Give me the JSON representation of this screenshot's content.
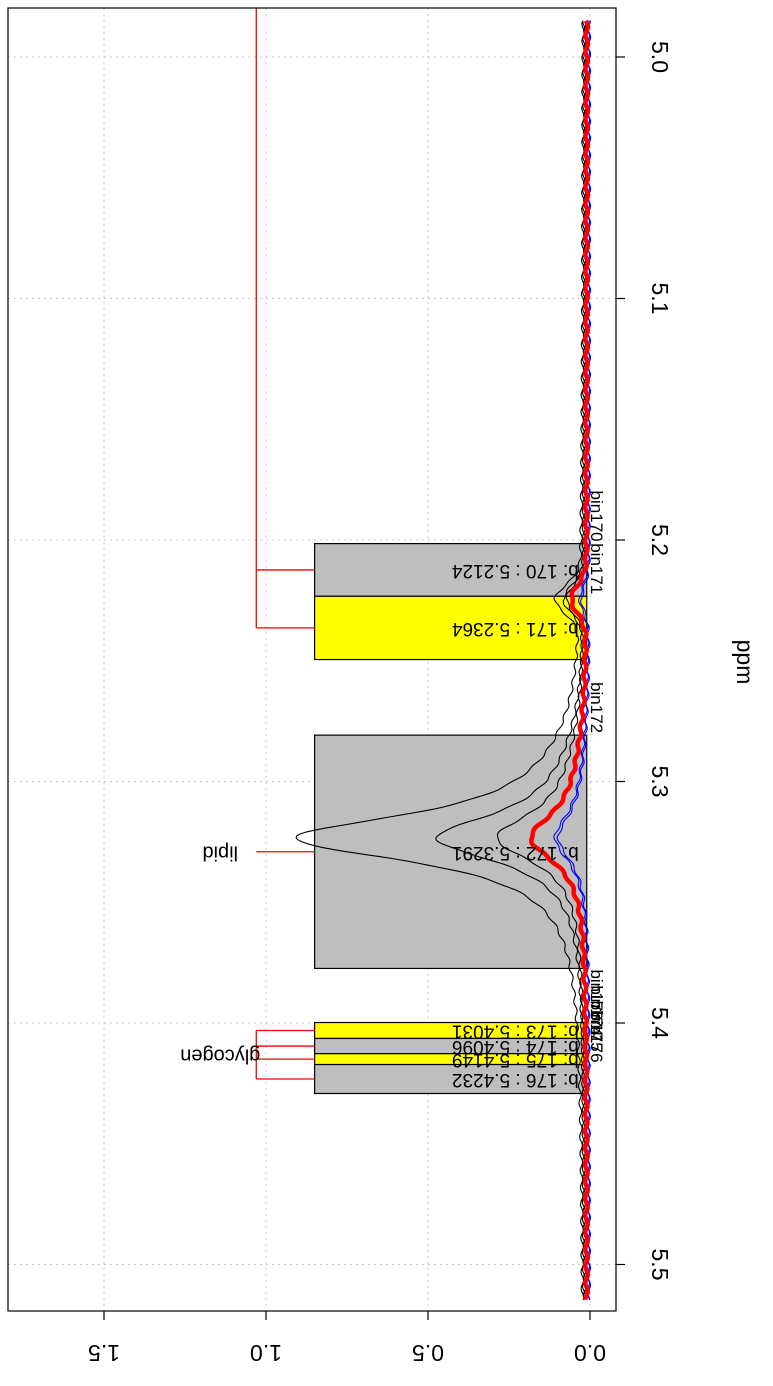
{
  "chart_data": {
    "type": "line",
    "orientation": "rotated-90",
    "title": "",
    "xlabel": "ppm",
    "ylabel": "",
    "xlim": [
      5.52,
      4.98
    ],
    "ylim": [
      -0.02,
      1.8
    ],
    "x_reversed": true,
    "x_ticks": [
      5.5,
      5.4,
      5.3,
      5.2,
      5.1,
      5.0
    ],
    "x_tick_labels": [
      "5.5",
      "5.4",
      "5.3",
      "5.2",
      "5.1",
      "5.0"
    ],
    "y_ticks": [
      0.0,
      0.5,
      1.0,
      1.5
    ],
    "y_tick_labels": [
      "0.0",
      "0.5",
      "1.0",
      "1.5"
    ],
    "grid": true,
    "bins": [
      {
        "id": 170,
        "ppm_from": 5.2015,
        "ppm_to": 5.2233,
        "ppm": "5.2124",
        "box_label": "b:  170 : 5.2124",
        "bin_label": "bin170",
        "color": "#bebebe",
        "top": 0.85
      },
      {
        "id": 171,
        "ppm_from": 5.2233,
        "ppm_to": 5.2495,
        "ppm": "5.2364",
        "box_label": "b:  171 : 5.2364",
        "bin_label": "bin171",
        "color": "#ffff00",
        "top": 0.85
      },
      {
        "id": 172,
        "ppm_from": 5.2808,
        "ppm_to": 5.3774,
        "ppm": "5.3291",
        "box_label": "b:  172 : 5.3291",
        "bin_label": "bin172",
        "color": "#bebebe",
        "top": 0.85
      },
      {
        "id": 173,
        "ppm_from": 5.3998,
        "ppm_to": 5.4064,
        "ppm": "5.4031",
        "box_label": "b:  173 : 5.4031",
        "bin_label": "bin173",
        "color": "#ffff00",
        "top": 0.85
      },
      {
        "id": 174,
        "ppm_from": 5.4064,
        "ppm_to": 5.4127,
        "ppm": "5.4096",
        "box_label": "b:  174 : 5.4096",
        "bin_label": "bin174",
        "color": "#bebebe",
        "top": 0.85
      },
      {
        "id": 175,
        "ppm_from": 5.4127,
        "ppm_to": 5.4172,
        "ppm": "5.4149",
        "box_label": "b:  175 : 5.4149",
        "bin_label": "bin175",
        "color": "#ffff00",
        "top": 0.85
      },
      {
        "id": 176,
        "ppm_from": 5.4172,
        "ppm_to": 5.4292,
        "ppm": "5.4232",
        "box_label": "b:  176 : 5.4232",
        "bin_label": "bin176",
        "color": "#bebebe",
        "top": 0.85
      }
    ],
    "annotations": [
      {
        "label": "lipid",
        "bins": [
          172
        ],
        "bracket_y": 1.03
      },
      {
        "label": "glycogen",
        "bins": [
          173,
          174,
          175,
          176
        ],
        "bracket_y": 1.03
      },
      {
        "label": "",
        "bins": [
          170,
          171
        ],
        "bracket_y": 1.03,
        "extends_to_edge": true
      }
    ],
    "series": [
      {
        "color": "#000000",
        "width": 1.1,
        "peak_y": 0.88,
        "base": 0.02,
        "tail_y": 0.18,
        "bump_y": 0.075
      },
      {
        "color": "#000000",
        "width": 1.1,
        "peak_y": 0.45,
        "base": 0.015,
        "tail_y": 0.15,
        "bump_y": 0.06
      },
      {
        "color": "#000000",
        "width": 1.1,
        "peak_y": 0.27,
        "base": 0.018,
        "tail_y": 0.12,
        "bump_y": 0.05
      },
      {
        "color": "#0000ff",
        "width": 1.1,
        "peak_y": 0.1,
        "base": 0.005,
        "tail_y": 0.05,
        "bump_y": 0.025
      },
      {
        "color": "#0000ff",
        "width": 1.1,
        "peak_y": 0.09,
        "base": 0.002,
        "tail_y": 0.045,
        "bump_y": 0.022
      },
      {
        "color": "#ff0000",
        "width": 4.5,
        "peak_y": 0.17,
        "base": 0.01,
        "tail_y": 0.08,
        "bump_y": 0.045
      }
    ]
  }
}
